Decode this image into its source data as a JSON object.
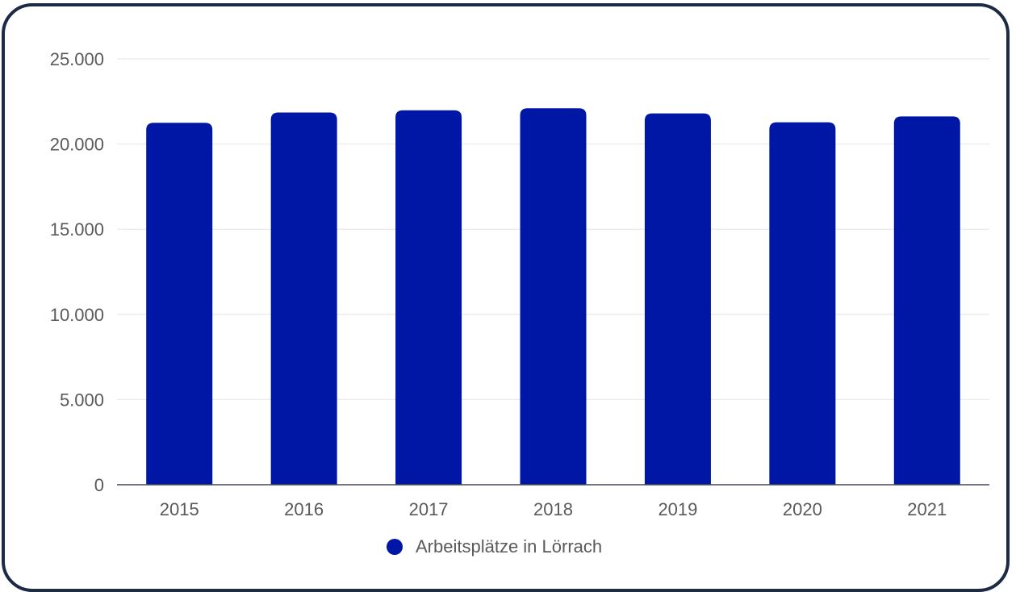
{
  "chart_data": {
    "type": "bar",
    "categories": [
      "2015",
      "2016",
      "2017",
      "2018",
      "2019",
      "2020",
      "2021"
    ],
    "series": [
      {
        "name": "Arbeitsplätze in Lörrach",
        "values": [
          21250,
          21850,
          21980,
          22100,
          21800,
          21280,
          21620
        ],
        "color": "#0016a4"
      }
    ],
    "ylim": [
      0,
      25000
    ],
    "yticks": [
      0,
      5000,
      10000,
      15000,
      20000,
      25000
    ],
    "ytick_labels": [
      "0",
      "5.000",
      "10.000",
      "15.000",
      "20.000",
      "25.000"
    ],
    "title": "",
    "xlabel": "",
    "ylabel": "",
    "grid": true,
    "legend": {
      "placement": "bottom-center",
      "entries": [
        "Arbeitsplätze in Lörrach"
      ]
    },
    "colors": {
      "bar": "#0016a4",
      "gridline": "#e6e6e6",
      "axis": "#444a5a",
      "label": "#5a5a5a",
      "frame": "#1c2a44"
    }
  }
}
